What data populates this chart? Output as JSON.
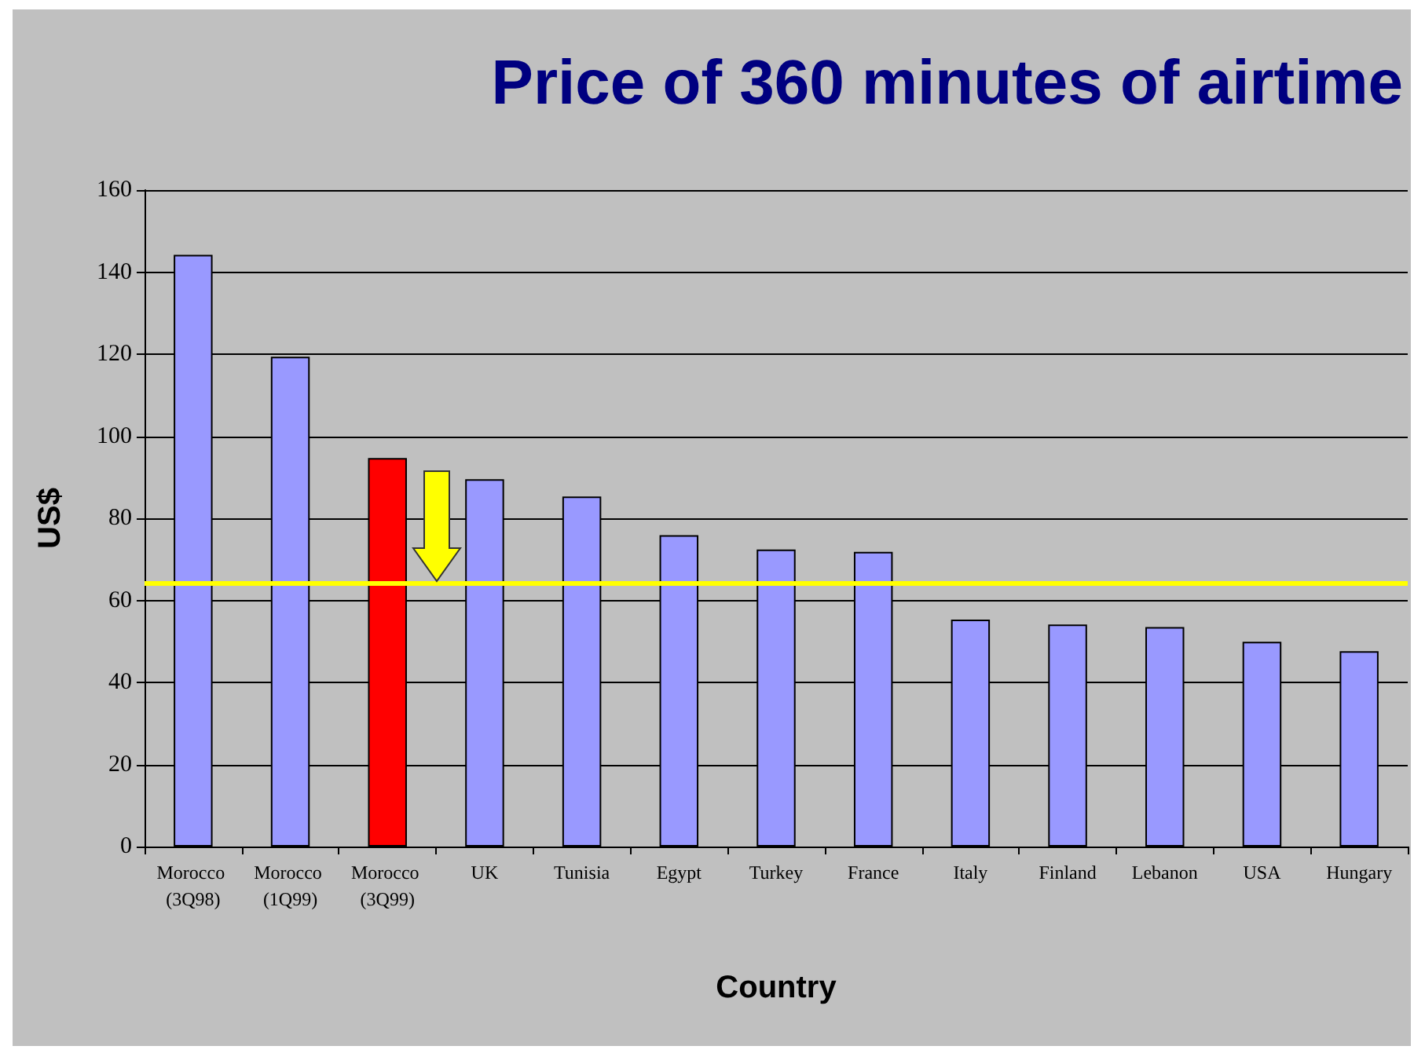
{
  "chart_data": {
    "type": "bar",
    "title": "Price of 360 minutes of airtime",
    "xlabel": "Country",
    "ylabel": "US$",
    "categories": [
      "Morocco (3Q98)",
      "Morocco (1Q99)",
      "Morocco (3Q99)",
      "UK",
      "Tunisia",
      "Egypt",
      "Turkey",
      "France",
      "Italy",
      "Finland",
      "Lebanon",
      "USA",
      "Hungary"
    ],
    "values": [
      144.2,
      119.4,
      94.7,
      89.5,
      85.3,
      75.9,
      72.4,
      71.8,
      55.3,
      54.1,
      53.5,
      49.9,
      47.6
    ],
    "colors": [
      "#9999ff",
      "#9999ff",
      "#ff0000",
      "#9999ff",
      "#9999ff",
      "#9999ff",
      "#9999ff",
      "#9999ff",
      "#9999ff",
      "#9999ff",
      "#9999ff",
      "#9999ff",
      "#9999ff"
    ],
    "ylim": [
      0,
      160
    ],
    "yticks": [
      0,
      20,
      40,
      60,
      80,
      100,
      120,
      140,
      160
    ],
    "grid": "y",
    "ref_lines": [
      {
        "axis": "y",
        "value": 64.2,
        "color": "#ffff00",
        "line_style": "solid"
      }
    ]
  }
}
